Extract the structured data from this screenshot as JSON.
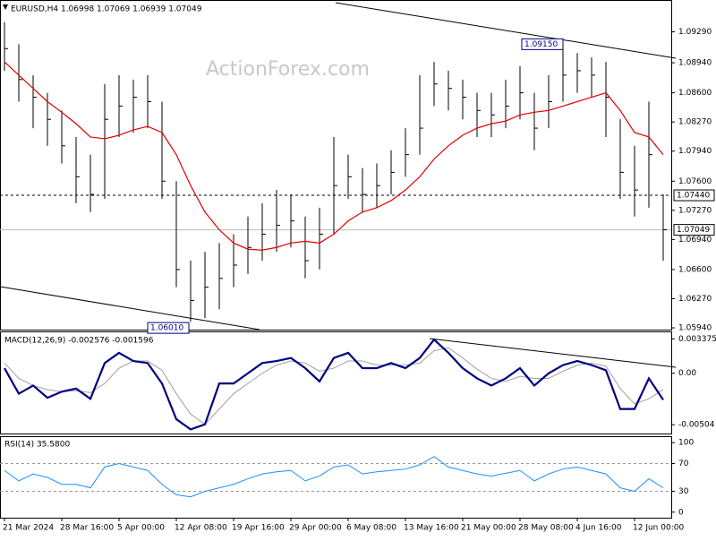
{
  "chart_data": [
    {
      "type": "hlc",
      "title": "EURUSD,H4 1.06998 1.07069 1.06939 1.07049",
      "watermark": "ActionForex.com",
      "color": "#000000",
      "ylim": [
        1.0592,
        1.0963
      ],
      "yticks": [
        {
          "value": 1.0594,
          "label": "1.05940"
        },
        {
          "value": 1.0627,
          "label": "1.06270"
        },
        {
          "value": 1.066,
          "label": "1.06600"
        },
        {
          "value": 1.0694,
          "label": "1.06940"
        },
        {
          "value": 1.0727,
          "label": "1.07270"
        },
        {
          "value": 1.076,
          "label": "1.07600"
        },
        {
          "value": 1.0794,
          "label": "1.07940"
        },
        {
          "value": 1.0827,
          "label": "1.08270"
        },
        {
          "value": 1.086,
          "label": "1.08600"
        },
        {
          "value": 1.0894,
          "label": "1.08940"
        },
        {
          "value": 1.0929,
          "label": "1.09290"
        }
      ],
      "high": [
        1.094,
        1.0915,
        1.088,
        1.086,
        1.084,
        1.081,
        1.079,
        1.087,
        1.088,
        1.0875,
        1.088,
        1.085,
        1.076,
        1.067,
        1.068,
        1.069,
        1.07,
        1.072,
        1.0735,
        1.075,
        1.0745,
        1.072,
        1.073,
        1.081,
        1.079,
        1.0775,
        1.078,
        1.0795,
        1.082,
        1.088,
        1.0895,
        1.0885,
        1.0875,
        1.086,
        1.086,
        1.0875,
        1.089,
        1.086,
        1.088,
        1.0915,
        1.0905,
        1.09,
        1.0895,
        1.083,
        1.08,
        1.085,
        1.0745
      ],
      "low": [
        1.0885,
        1.085,
        1.082,
        1.08,
        1.078,
        1.0735,
        1.0725,
        1.074,
        1.081,
        1.0815,
        1.082,
        1.074,
        1.064,
        1.0601,
        1.0605,
        1.0615,
        1.064,
        1.0655,
        1.067,
        1.068,
        1.0685,
        1.065,
        1.066,
        1.07,
        1.074,
        1.0725,
        1.073,
        1.0745,
        1.0765,
        1.079,
        1.0845,
        1.084,
        1.083,
        1.081,
        1.081,
        1.082,
        1.083,
        1.0795,
        1.082,
        1.085,
        1.086,
        1.0855,
        1.081,
        1.074,
        1.072,
        1.073,
        1.067
      ],
      "close": [
        1.091,
        1.0875,
        1.0855,
        1.083,
        1.08,
        1.0765,
        1.0745,
        1.083,
        1.0845,
        1.0855,
        1.085,
        1.076,
        1.066,
        1.0625,
        1.064,
        1.065,
        1.0665,
        1.0685,
        1.07,
        1.071,
        1.0715,
        1.067,
        1.07,
        1.0755,
        1.0765,
        1.0745,
        1.0755,
        1.077,
        1.079,
        1.082,
        1.087,
        1.0865,
        1.0855,
        1.084,
        1.0835,
        1.0845,
        1.086,
        1.082,
        1.085,
        1.088,
        1.0885,
        1.088,
        1.0855,
        1.077,
        1.075,
        1.079,
        1.0705
      ],
      "moving_average": {
        "color": "#e00000",
        "values": [
          1.0895,
          1.088,
          1.0865,
          1.085,
          1.0838,
          1.0825,
          1.081,
          1.0808,
          1.0812,
          1.0818,
          1.0822,
          1.0815,
          1.079,
          1.0755,
          1.0725,
          1.0705,
          1.069,
          1.0683,
          1.0682,
          1.0685,
          1.069,
          1.0692,
          1.069,
          1.07,
          1.0715,
          1.0725,
          1.073,
          1.0738,
          1.075,
          1.0765,
          1.0785,
          1.08,
          1.0812,
          1.082,
          1.0825,
          1.0828,
          1.0835,
          1.0838,
          1.084,
          1.0845,
          1.085,
          1.0855,
          1.086,
          1.084,
          1.0815,
          1.081,
          1.079
        ]
      },
      "levels": [
        {
          "value": 1.0744,
          "label": "1.07440"
        }
      ],
      "last_price": {
        "value": 1.07049,
        "label": "1.07049"
      },
      "annotations": [
        {
          "value": 1.0915,
          "label": "1.09150"
        },
        {
          "value": 1.0601,
          "label": "1.06010"
        }
      ]
    },
    {
      "type": "line",
      "title": "MACD(12,26,9) -0.002576 -0.001596",
      "ylim": [
        -0.0059,
        0.0041
      ],
      "yticks": [
        0.003375,
        {
          "value": 0,
          "label": "0.00"
        },
        -0.00504
      ],
      "series": [
        {
          "color": "#000080",
          "width": 2.2,
          "values": [
            0.0005,
            -0.002,
            -0.0012,
            -0.0024,
            -0.0018,
            -0.0015,
            -0.0025,
            0.001,
            0.002,
            0.0012,
            0.001,
            -0.001,
            -0.0045,
            -0.0055,
            -0.005,
            -0.001,
            -0.001,
            0,
            0.001,
            0.0012,
            0.0015,
            0.0005,
            -0.0008,
            0.0015,
            0.002,
            0.0005,
            0.0005,
            0.001,
            0.0005,
            0.0015,
            0.0033,
            0.002,
            0.0005,
            -0.0005,
            -0.0012,
            -0.0005,
            0.0005,
            -0.0012,
            0,
            0.0008,
            0.0012,
            0.0008,
            0.0003,
            -0.0035,
            -0.0035,
            -0.0005,
            -0.0026
          ]
        },
        {
          "color": "#a0a0a0",
          "width": 1,
          "values": [
            0.001,
            -0.0005,
            -0.0012,
            -0.0016,
            -0.0018,
            -0.0017,
            -0.0019,
            -0.001,
            0.0005,
            0.0012,
            0.0012,
            0.0003,
            -0.002,
            -0.004,
            -0.005,
            -0.0035,
            -0.002,
            -0.001,
            0,
            0.0008,
            0.0012,
            0.001,
            0.0002,
            0.0005,
            0.0012,
            0.0012,
            0.0008,
            0.0008,
            0.0008,
            0.001,
            0.0022,
            0.0025,
            0.0015,
            0.0004,
            -0.0005,
            -0.0008,
            -0.0003,
            -0.0005,
            -0.0005,
            0.0002,
            0.0008,
            0.001,
            0.0007,
            -0.0015,
            -0.003,
            -0.0025,
            -0.0016
          ]
        }
      ]
    },
    {
      "type": "line",
      "title": "RSI(14) 35.5800",
      "ylim": [
        -8,
        108
      ],
      "yticks": [
        0,
        30,
        70,
        100
      ],
      "dashed_levels": [
        30,
        70
      ],
      "categories": [
        "21 Mar 2024",
        null,
        null,
        null,
        "28 Mar 16:00",
        null,
        null,
        null,
        "5 Apr 00:00",
        null,
        null,
        null,
        "12 Apr 08:00",
        null,
        null,
        null,
        "19 Apr 16:00",
        null,
        null,
        null,
        "29 Apr 00:00",
        null,
        null,
        null,
        "6 May 08:00",
        null,
        null,
        null,
        "13 May 16:00",
        null,
        null,
        null,
        "21 May 00:00",
        null,
        null,
        null,
        "28 May 08:00",
        null,
        null,
        null,
        "4 Jun 16:00",
        null,
        null,
        null,
        "12 Jun 00:00",
        null,
        null
      ],
      "series": [
        {
          "color": "#1e90ff",
          "width": 1,
          "values": [
            60,
            45,
            55,
            50,
            40,
            40,
            35,
            65,
            70,
            65,
            60,
            40,
            25,
            22,
            30,
            35,
            40,
            48,
            55,
            58,
            60,
            45,
            52,
            65,
            68,
            55,
            58,
            60,
            62,
            68,
            80,
            65,
            60,
            55,
            52,
            56,
            60,
            45,
            55,
            62,
            65,
            60,
            55,
            35,
            30,
            48,
            35
          ]
        }
      ]
    }
  ]
}
